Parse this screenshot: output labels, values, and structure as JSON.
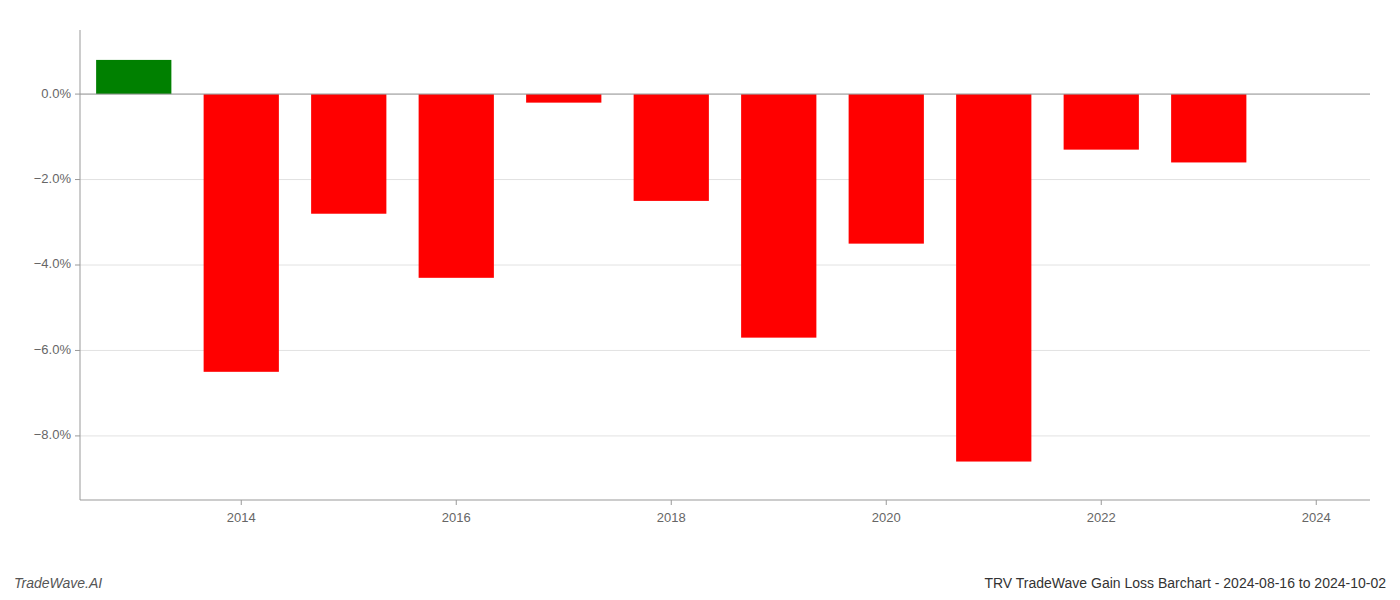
{
  "chart_data": {
    "type": "bar",
    "title": "TRV TradeWave Gain Loss Barchart - 2024-08-16 to 2024-10-02",
    "annotations": [
      "TradeWave.AI"
    ],
    "x": [
      2013,
      2014,
      2015,
      2016,
      2017,
      2018,
      2019,
      2020,
      2021,
      2022,
      2023
    ],
    "values": [
      0.008,
      -0.065,
      -0.028,
      -0.043,
      -0.002,
      -0.025,
      -0.057,
      -0.035,
      -0.086,
      -0.013,
      -0.016
    ],
    "colors": [
      "#008000",
      "#ff0000",
      "#ff0000",
      "#ff0000",
      "#ff0000",
      "#ff0000",
      "#ff0000",
      "#ff0000",
      "#ff0000",
      "#ff0000",
      "#ff0000"
    ],
    "xlim": [
      2012.5,
      2024.5
    ],
    "xticks": [
      2014,
      2016,
      2018,
      2020,
      2022,
      2024
    ],
    "ylim": [
      -0.095,
      0.015
    ],
    "yticks": [
      {
        "value": -0.08,
        "label": "−8.0%"
      },
      {
        "value": -0.06,
        "label": "−6.0%"
      },
      {
        "value": -0.04,
        "label": "−4.0%"
      },
      {
        "value": -0.02,
        "label": "−2.0%"
      },
      {
        "value": 0,
        "label": "0.0%"
      }
    ],
    "grid": true
  }
}
